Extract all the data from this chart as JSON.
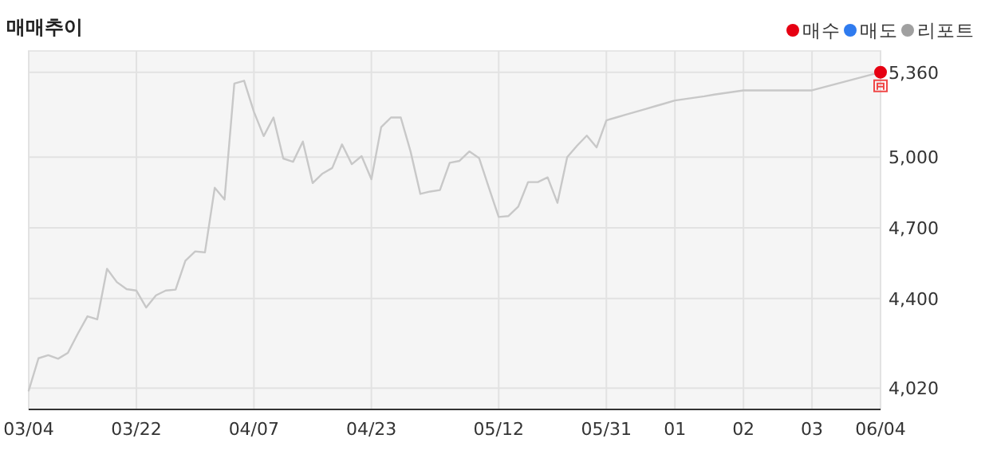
{
  "chart_data": {
    "type": "line",
    "title": "매매추이",
    "categories": [
      "03/04",
      null,
      null,
      null,
      null,
      null,
      null,
      null,
      null,
      null,
      null,
      "03/22",
      null,
      null,
      null,
      null,
      null,
      null,
      null,
      null,
      null,
      null,
      null,
      "04/07",
      null,
      null,
      null,
      null,
      null,
      null,
      null,
      null,
      null,
      null,
      null,
      "04/23",
      null,
      null,
      null,
      null,
      null,
      null,
      null,
      null,
      null,
      null,
      null,
      null,
      "05/12",
      null,
      null,
      null,
      null,
      null,
      null,
      null,
      null,
      null,
      null,
      "05/31",
      null,
      null,
      null,
      null,
      null,
      null,
      "01",
      null,
      null,
      null,
      null,
      null,
      null,
      "02",
      null,
      null,
      null,
      null,
      null,
      null,
      "03",
      null,
      null,
      null,
      null,
      null,
      null,
      "06/04"
    ],
    "series": [
      {
        "color": "#c8c8c8",
        "values": [
          4010,
          4147,
          4160,
          4145,
          4170,
          4250,
          4325,
          4312,
          4526,
          4470,
          4440,
          4434,
          4362,
          4414,
          4434,
          4438,
          4560,
          4600,
          4596,
          4870,
          4820,
          5312,
          5324,
          5192,
          5089,
          5168,
          4994,
          4980,
          5066,
          4890,
          4930,
          4954,
          5054,
          4970,
          5004,
          4906,
          5127,
          5168,
          5168,
          5024,
          4844,
          4854,
          4860,
          4976,
          4984,
          5024,
          4996,
          4870,
          4746,
          4750,
          4790,
          4894,
          4894,
          4914,
          4806,
          5000,
          5048,
          5091,
          5041,
          5156,
          5168,
          5180,
          5192,
          5204,
          5216,
          5228,
          5240,
          5246,
          5252,
          5258,
          5265,
          5271,
          5277,
          5283,
          5283,
          5283,
          5283,
          5283,
          5283,
          5283,
          5283,
          5294,
          5305,
          5316,
          5327,
          5338,
          5349,
          5360
        ]
      },
      {
        "type": "scatter",
        "name": "매수",
        "color": "#e60012",
        "marker": "circle",
        "x": [
          "06/04"
        ],
        "values": [
          5360
        ]
      },
      {
        "type": "scatter",
        "name": "매도",
        "color": "#2f7bef",
        "marker": "circle",
        "values": [
          null,
          null,
          null,
          null,
          null,
          null,
          null,
          null,
          null,
          null,
          null,
          null,
          null,
          null,
          null,
          null,
          null,
          null,
          null,
          null,
          null,
          null,
          null,
          null,
          null,
          null,
          null,
          null,
          null,
          null,
          null,
          null,
          null,
          null,
          null,
          null,
          null,
          null,
          null,
          null,
          null,
          null,
          null,
          null,
          null,
          null,
          null,
          null,
          null,
          null,
          null,
          null,
          null,
          null,
          null,
          null,
          null,
          null,
          null,
          null,
          null,
          null,
          null,
          null,
          null,
          null,
          null,
          null,
          null,
          null,
          null,
          null,
          null,
          null,
          null,
          null,
          null,
          null,
          null,
          null,
          null,
          null,
          null,
          null,
          null,
          null,
          null,
          null
        ]
      },
      {
        "type": "scatter",
        "name": "리포트",
        "color": "#a0a0a0",
        "marker": "circle",
        "values": [
          null,
          null,
          null,
          null,
          null,
          null,
          null,
          null,
          null,
          null,
          null,
          null,
          null,
          null,
          null,
          null,
          null,
          null,
          null,
          null,
          null,
          null,
          null,
          null,
          null,
          null,
          null,
          null,
          null,
          null,
          null,
          null,
          null,
          null,
          null,
          null,
          null,
          null,
          null,
          null,
          null,
          null,
          null,
          null,
          null,
          null,
          null,
          null,
          null,
          null,
          null,
          null,
          null,
          null,
          null,
          null,
          null,
          null,
          null,
          null,
          null,
          null,
          null,
          null,
          null,
          null,
          null,
          null,
          null,
          null,
          null,
          null,
          null,
          null,
          null,
          null,
          null,
          null,
          null,
          null,
          null,
          null,
          null,
          null,
          null,
          null,
          null,
          null
        ]
      }
    ],
    "ylim": [
      3930,
      5450
    ],
    "yticks": [
      {
        "value": 4020,
        "label": "4,020"
      },
      {
        "value": 4400,
        "label": "4,400"
      },
      {
        "value": 4700,
        "label": "4,700"
      },
      {
        "value": 5000,
        "label": "5,000"
      },
      {
        "value": 5360,
        "label": "5,360"
      }
    ],
    "grid": true,
    "legend": "top right",
    "marker": "none",
    "line_style": "solid"
  }
}
